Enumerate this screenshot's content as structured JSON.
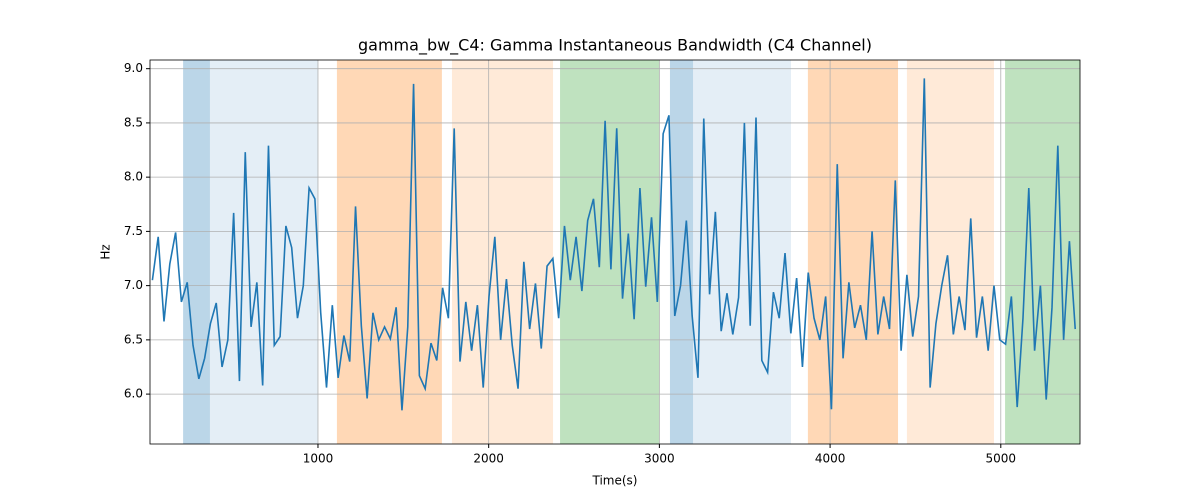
{
  "chart_data": {
    "type": "line",
    "title": "gamma_bw_C4: Gamma Instantaneous Bandwidth (C4 Channel)",
    "xlabel": "Time(s)",
    "ylabel": "Hz",
    "xlim": [
      16,
      5464
    ],
    "ylim": [
      5.54,
      9.08
    ],
    "xticks": [
      1000,
      2000,
      3000,
      4000,
      5000
    ],
    "yticks": [
      {
        "value": 6,
        "label": "6.0"
      },
      {
        "value": 6.5,
        "label": "6.5"
      },
      {
        "value": 7,
        "label": "7.0"
      },
      {
        "value": 7.5,
        "label": "7.5"
      },
      {
        "value": 8,
        "label": "8.0"
      },
      {
        "value": 8.5,
        "label": "8.5"
      },
      {
        "value": 9,
        "label": "9.0"
      }
    ],
    "grid": true,
    "spans": [
      {
        "start": 210,
        "end": 367,
        "color": "#1f77b4",
        "alpha": 0.3
      },
      {
        "start": 367,
        "end": 1000,
        "color": "#1f77b4",
        "alpha": 0.12
      },
      {
        "start": 1111,
        "end": 1726,
        "color": "#ff7f0e",
        "alpha": 0.3
      },
      {
        "start": 1785,
        "end": 2377,
        "color": "#ff7f0e",
        "alpha": 0.16
      },
      {
        "start": 2418,
        "end": 2998,
        "color": "#2ca02c",
        "alpha": 0.3
      },
      {
        "start": 3062,
        "end": 3197,
        "color": "#1f77b4",
        "alpha": 0.3
      },
      {
        "start": 3197,
        "end": 3771,
        "color": "#1f77b4",
        "alpha": 0.12
      },
      {
        "start": 3870,
        "end": 4398,
        "color": "#ff7f0e",
        "alpha": 0.3
      },
      {
        "start": 4450,
        "end": 4960,
        "color": "#ff7f0e",
        "alpha": 0.16
      },
      {
        "start": 5025,
        "end": 5464,
        "color": "#2ca02c",
        "alpha": 0.3
      }
    ],
    "x": [
      30,
      64,
      98,
      132,
      166,
      200,
      234,
      268,
      302,
      336,
      370,
      404,
      438,
      472,
      506,
      540,
      574,
      608,
      642,
      676,
      710,
      744,
      778,
      812,
      846,
      880,
      914,
      948,
      982,
      1016,
      1050,
      1084,
      1118,
      1152,
      1186,
      1220,
      1254,
      1288,
      1322,
      1356,
      1390,
      1424,
      1458,
      1492,
      1526,
      1560,
      1594,
      1628,
      1662,
      1696,
      1730,
      1764,
      1798,
      1832,
      1866,
      1900,
      1934,
      1968,
      2002,
      2036,
      2070,
      2104,
      2138,
      2172,
      2206,
      2240,
      2274,
      2308,
      2342,
      2376,
      2410,
      2444,
      2478,
      2512,
      2546,
      2580,
      2614,
      2648,
      2682,
      2716,
      2750,
      2784,
      2818,
      2852,
      2886,
      2920,
      2954,
      2988,
      3022,
      3056,
      3090,
      3124,
      3158,
      3192,
      3226,
      3260,
      3294,
      3328,
      3362,
      3396,
      3430,
      3464,
      3498,
      3532,
      3566,
      3600,
      3634,
      3668,
      3702,
      3736,
      3770,
      3804,
      3838,
      3872,
      3906,
      3940,
      3974,
      4008,
      4042,
      4076,
      4110,
      4144,
      4178,
      4212,
      4246,
      4280,
      4314,
      4348,
      4382,
      4416,
      4450,
      4484,
      4518,
      4552,
      4586,
      4620,
      4654,
      4688,
      4722,
      4756,
      4790,
      4824,
      4858,
      4892,
      4926,
      4960,
      4994,
      5028,
      5062,
      5096,
      5130,
      5164,
      5198,
      5232,
      5266,
      5300,
      5334,
      5368,
      5402,
      5436
    ],
    "series": [
      {
        "color": "#1f77b4",
        "values": [
          7.05,
          7.45,
          6.67,
          7.2,
          7.49,
          6.85,
          7.03,
          6.45,
          6.14,
          6.33,
          6.65,
          6.84,
          6.25,
          6.5,
          7.67,
          6.12,
          8.23,
          6.62,
          7.03,
          6.08,
          8.29,
          6.45,
          6.53,
          7.55,
          7.35,
          6.7,
          7.0,
          7.9,
          7.8,
          6.75,
          6.06,
          6.82,
          6.15,
          6.54,
          6.3,
          7.73,
          6.63,
          5.96,
          6.75,
          6.5,
          6.62,
          6.51,
          6.8,
          5.85,
          6.62,
          8.86,
          6.17,
          6.05,
          6.47,
          6.31,
          6.98,
          6.7,
          8.45,
          6.3,
          6.85,
          6.4,
          6.82,
          6.06,
          6.9,
          7.45,
          6.5,
          7.06,
          6.45,
          6.05,
          7.22,
          6.6,
          7.02,
          6.42,
          7.18,
          7.25,
          6.7,
          7.55,
          7.05,
          7.45,
          6.95,
          7.6,
          7.8,
          7.17,
          8.52,
          7.15,
          8.45,
          6.88,
          7.48,
          6.69,
          7.9,
          6.99,
          7.63,
          6.85,
          8.4,
          8.57,
          6.72,
          7.0,
          7.6,
          6.72,
          6.15,
          8.54,
          6.92,
          7.68,
          6.58,
          6.93,
          6.55,
          6.89,
          8.5,
          6.63,
          8.55,
          6.31,
          6.2,
          6.94,
          6.7,
          7.3,
          6.56,
          7.07,
          6.25,
          7.12,
          6.7,
          6.5,
          6.9,
          5.86,
          8.12,
          6.33,
          7.03,
          6.61,
          6.82,
          6.5,
          7.5,
          6.55,
          6.9,
          6.6,
          7.97,
          6.4,
          7.1,
          6.53,
          6.9,
          8.91,
          6.06,
          6.65,
          7.0,
          7.28,
          6.55,
          6.9,
          6.59,
          7.62,
          6.52,
          6.9,
          6.4,
          7.0,
          6.5,
          6.46,
          6.9,
          5.88,
          6.7,
          7.9,
          6.4,
          7.0,
          5.95,
          6.8,
          8.29,
          6.5,
          7.41,
          6.6
        ]
      }
    ]
  }
}
